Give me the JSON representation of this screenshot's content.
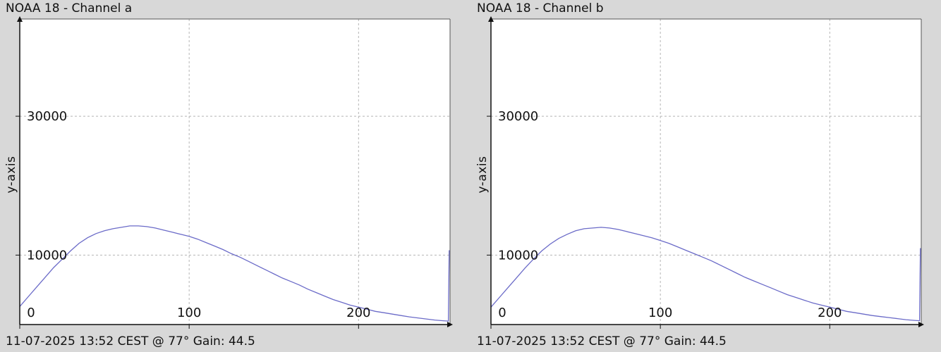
{
  "chart_data": [
    {
      "type": "line",
      "title": "NOAA 18 - Channel a",
      "xlabel": "",
      "ylabel": "y-axis",
      "xlim": [
        0,
        254
      ],
      "ylim": [
        0,
        44000
      ],
      "xticks": [
        0,
        100,
        200
      ],
      "yticks": [
        10000,
        30000
      ],
      "grid": true,
      "line_color": "#6b6bc8",
      "series": [
        {
          "x": [
            0,
            5,
            10,
            15,
            20,
            25,
            30,
            35,
            40,
            45,
            50,
            55,
            60,
            65,
            70,
            75,
            80,
            85,
            90,
            95,
            100,
            105,
            110,
            115,
            120,
            125,
            130,
            135,
            140,
            145,
            150,
            155,
            160,
            165,
            170,
            175,
            180,
            185,
            190,
            195,
            200,
            205,
            210,
            215,
            220,
            225,
            230,
            235,
            240,
            245,
            250,
            253,
            253.5
          ],
          "y": [
            2600,
            4000,
            5400,
            6800,
            8200,
            9400,
            10600,
            11700,
            12500,
            13100,
            13500,
            13800,
            14000,
            14200,
            14200,
            14100,
            13900,
            13600,
            13300,
            13000,
            12700,
            12300,
            11800,
            11300,
            10800,
            10200,
            9700,
            9100,
            8500,
            7900,
            7300,
            6700,
            6200,
            5700,
            5100,
            4600,
            4100,
            3600,
            3200,
            2800,
            2500,
            2200,
            1900,
            1700,
            1500,
            1300,
            1100,
            950,
            800,
            650,
            550,
            500,
            10700
          ]
        }
      ],
      "footer": "11-07-2025 13:52 CEST @ 77° Gain: 44.5"
    },
    {
      "type": "line",
      "title": "NOAA 18 - Channel b",
      "xlabel": "",
      "ylabel": "y-axis",
      "xlim": [
        0,
        254
      ],
      "ylim": [
        0,
        44000
      ],
      "xticks": [
        0,
        100,
        200
      ],
      "yticks": [
        10000,
        30000
      ],
      "grid": true,
      "line_color": "#6b6bc8",
      "series": [
        {
          "x": [
            0,
            5,
            10,
            15,
            20,
            25,
            30,
            35,
            40,
            45,
            50,
            55,
            60,
            65,
            70,
            75,
            80,
            85,
            90,
            95,
            100,
            105,
            110,
            115,
            120,
            125,
            130,
            135,
            140,
            145,
            150,
            155,
            160,
            165,
            170,
            175,
            180,
            185,
            190,
            195,
            200,
            205,
            210,
            215,
            220,
            225,
            230,
            235,
            240,
            245,
            250,
            253,
            253.5
          ],
          "y": [
            2500,
            3900,
            5300,
            6700,
            8100,
            9400,
            10600,
            11600,
            12400,
            13000,
            13500,
            13800,
            13900,
            14000,
            13900,
            13700,
            13400,
            13100,
            12800,
            12500,
            12100,
            11700,
            11200,
            10700,
            10200,
            9700,
            9200,
            8600,
            8000,
            7400,
            6800,
            6300,
            5800,
            5300,
            4800,
            4300,
            3900,
            3500,
            3100,
            2800,
            2500,
            2200,
            1900,
            1700,
            1500,
            1300,
            1150,
            1000,
            850,
            700,
            600,
            550,
            11000
          ]
        }
      ],
      "footer": "11-07-2025 13:52 CEST @ 77° Gain: 44.5"
    }
  ]
}
